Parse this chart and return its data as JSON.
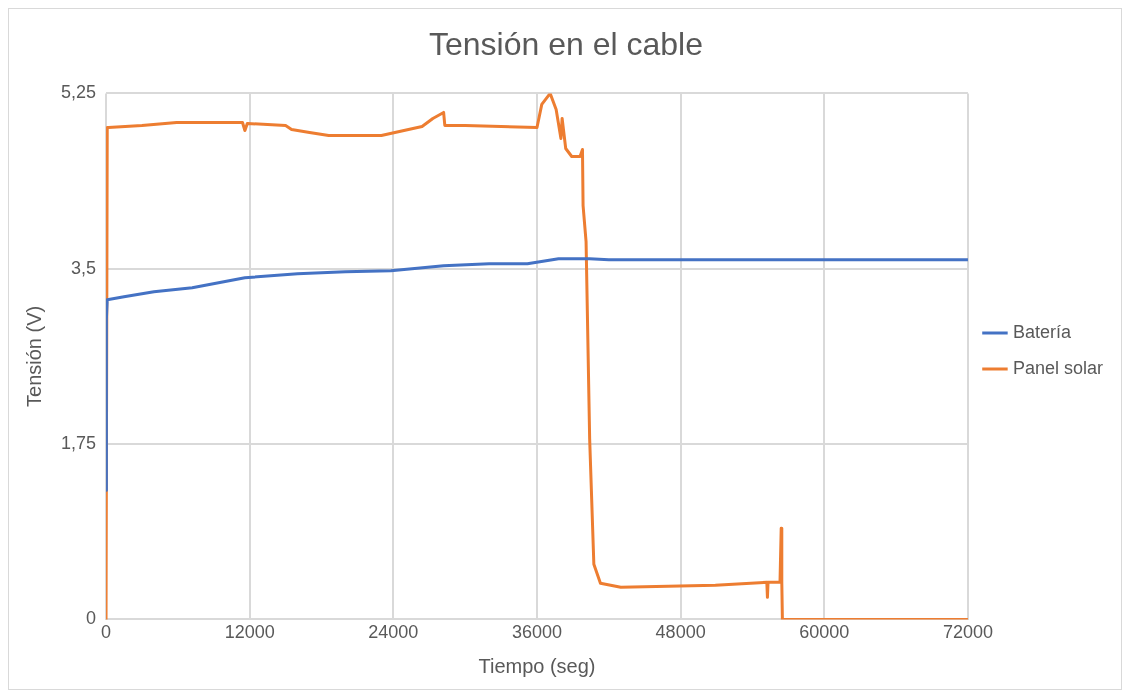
{
  "chart_data": {
    "type": "line",
    "title": "Tensión en el cable",
    "xlabel": "Tiempo (seg)",
    "ylabel": "Tensión (V)",
    "xlim": [
      0,
      72000
    ],
    "xticks": [
      0,
      12000,
      24000,
      36000,
      48000,
      60000,
      72000
    ],
    "ylim": [
      0,
      5.25
    ],
    "yticks": [
      {
        "value": 0,
        "label": "0"
      },
      {
        "value": 1.75,
        "label": "1,75"
      },
      {
        "value": 3.5,
        "label": "3,5"
      },
      {
        "value": 5.25,
        "label": "5,25"
      }
    ],
    "grid": true,
    "legend": "right",
    "marker": "none",
    "line_style": "solid",
    "series": [
      {
        "name": "Batería",
        "color": "#4472c4",
        "x": [
          0,
          30,
          100,
          1500,
          4000,
          7200,
          11600,
          16000,
          20000,
          23800,
          28200,
          32000,
          35200,
          37800,
          40400,
          42000,
          50000,
          60000,
          72000
        ],
        "values": [
          1.29,
          3.0,
          3.19,
          3.22,
          3.27,
          3.31,
          3.41,
          3.45,
          3.47,
          3.48,
          3.53,
          3.55,
          3.55,
          3.6,
          3.6,
          3.59,
          3.59,
          3.59,
          3.59
        ]
      },
      {
        "name": "Panel solar",
        "color": "#ed7d31",
        "x": [
          0,
          100,
          200,
          3000,
          5900,
          11400,
          11600,
          11800,
          15000,
          15500,
          17000,
          18600,
          23000,
          26400,
          27300,
          28200,
          28300,
          30000,
          36000,
          36400,
          37100,
          37600,
          38000,
          38100,
          38400,
          38900,
          39600,
          39800,
          39850,
          40100,
          40400,
          40750,
          41300,
          43000,
          50900,
          55200,
          55250,
          55300,
          56300,
          56400,
          56450,
          56500,
          56550,
          60000,
          72000
        ],
        "values": [
          0,
          4.91,
          4.91,
          4.93,
          4.96,
          4.96,
          4.88,
          4.95,
          4.93,
          4.89,
          4.86,
          4.83,
          4.83,
          4.92,
          5.0,
          5.06,
          4.93,
          4.93,
          4.91,
          5.14,
          5.25,
          5.09,
          4.8,
          5.0,
          4.7,
          4.62,
          4.62,
          4.69,
          4.13,
          3.77,
          1.8,
          0.55,
          0.36,
          0.32,
          0.34,
          0.37,
          0.22,
          0.37,
          0.37,
          0.91,
          0.37,
          0,
          0,
          0,
          0
        ]
      }
    ]
  }
}
